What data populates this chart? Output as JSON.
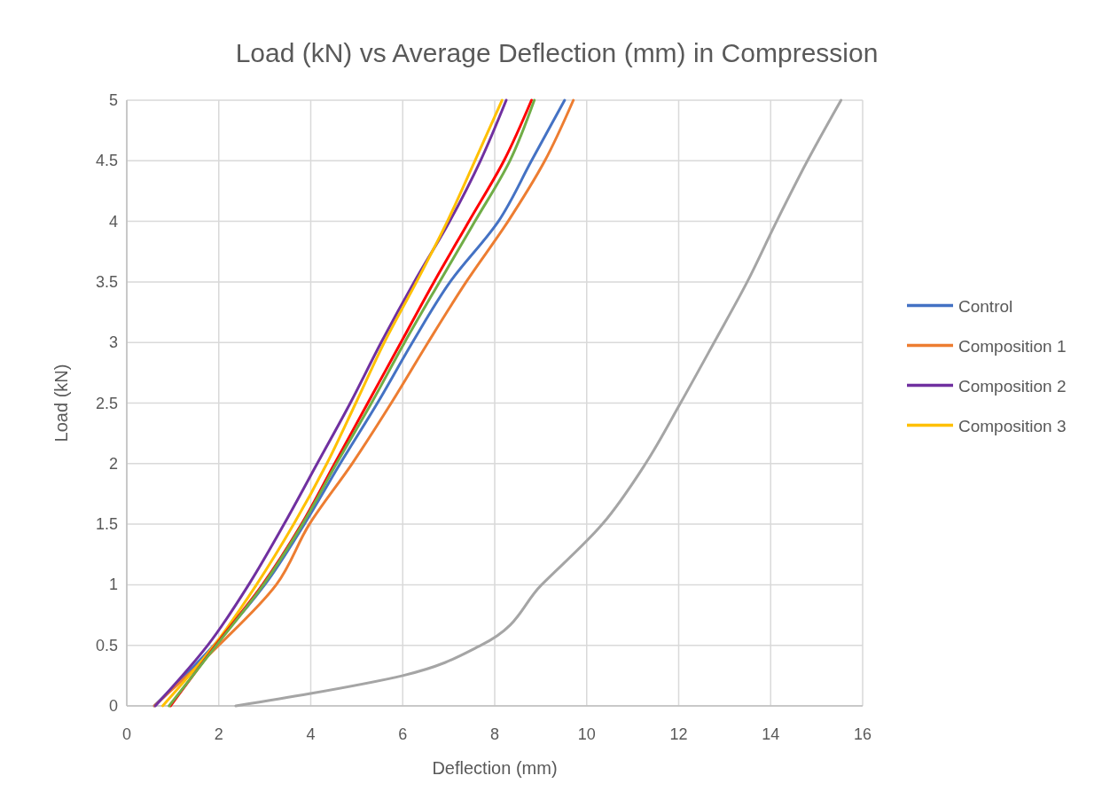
{
  "chart_data": {
    "type": "line",
    "title": "Load (kN) vs Average Deflection (mm) in Compression",
    "xlabel": "Deflection (mm)",
    "ylabel": "Load (kN)",
    "xlim": [
      0,
      16
    ],
    "xticks": [
      0,
      2,
      4,
      6,
      8,
      10,
      12,
      14,
      16
    ],
    "ylim": [
      0,
      5
    ],
    "yticks": [
      0,
      0.5,
      1,
      1.5,
      2,
      2.5,
      3,
      3.5,
      4,
      4.5,
      5
    ],
    "grid": true,
    "legend": "right",
    "line_style": "solid",
    "marker": "none",
    "series": [
      {
        "name": "Control",
        "color": "#4472c4",
        "x": [
          0.6,
          1.89,
          3.0,
          3.86,
          4.64,
          5.45,
          6.21,
          7.03,
          8.08,
          8.8,
          9.52
        ],
        "values": [
          0,
          0.5,
          1,
          1.5,
          2,
          2.5,
          3,
          3.5,
          4,
          4.5,
          5
        ]
      },
      {
        "name": "Composition 1",
        "color": "#ed7d31",
        "x": [
          0.6,
          2.0,
          3.25,
          3.97,
          4.9,
          5.75,
          6.55,
          7.38,
          8.29,
          9.09,
          9.71
        ],
        "values": [
          0,
          0.5,
          1,
          1.5,
          2,
          2.5,
          3,
          3.5,
          4,
          4.5,
          5
        ]
      },
      {
        "name": "Composition 2",
        "color": "#7030a0",
        "x": [
          0.62,
          1.76,
          2.65,
          3.42,
          4.14,
          4.86,
          5.53,
          6.25,
          7.02,
          7.69,
          8.25
        ],
        "values": [
          0,
          0.5,
          1,
          1.5,
          2,
          2.5,
          3,
          3.5,
          4,
          4.5,
          5
        ]
      },
      {
        "name": "Composition 3",
        "color": "#ffc000",
        "x": [
          0.78,
          1.9,
          2.82,
          3.63,
          4.35,
          4.98,
          5.6,
          6.3,
          6.97,
          7.57,
          8.16
        ],
        "values": [
          0,
          0.5,
          1,
          1.5,
          2,
          2.5,
          3,
          3.5,
          4,
          4.5,
          5
        ]
      },
      {
        "color": "#ff0000",
        "x": [
          0.95,
          1.93,
          2.95,
          3.8,
          4.52,
          5.24,
          5.96,
          6.68,
          7.44,
          8.2,
          8.8
        ],
        "values": [
          0,
          0.5,
          1,
          1.5,
          2,
          2.5,
          3,
          3.5,
          4,
          4.5,
          5
        ]
      },
      {
        "color": "#70ad47",
        "x": [
          0.92,
          1.95,
          2.97,
          3.82,
          4.56,
          5.32,
          6.04,
          6.8,
          7.57,
          8.33,
          8.86
        ],
        "values": [
          0,
          0.5,
          1,
          1.5,
          2,
          2.5,
          3,
          3.5,
          4,
          4.5,
          5
        ]
      },
      {
        "color": "#a5a5a5",
        "x": [
          2.37,
          3.97,
          6.0,
          7.7,
          9.02,
          10.34,
          11.28,
          12.04,
          12.77,
          13.49,
          14.13,
          14.8,
          15.53
        ],
        "values": [
          0,
          0.1,
          0.25,
          0.5,
          1,
          1.5,
          2,
          2.5,
          3,
          3.5,
          4,
          4.5,
          5
        ]
      }
    ]
  }
}
